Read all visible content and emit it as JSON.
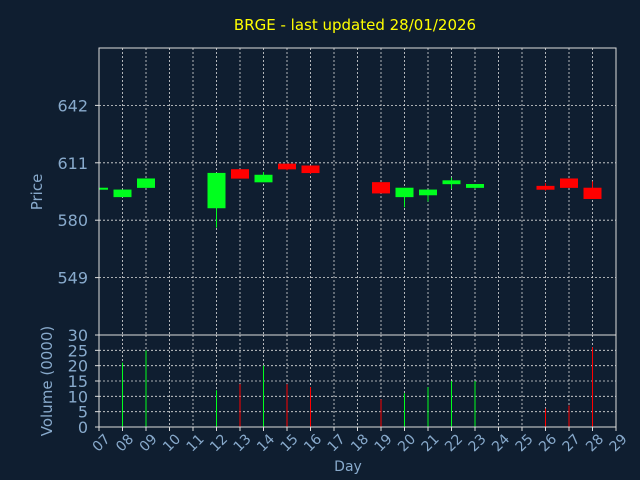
{
  "chart_data": {
    "type": "candlestick",
    "title": "BRGE - last updated 28/01/2026",
    "xlabel": "Day",
    "price_panel": {
      "ylabel": "Price",
      "yticks": [
        549,
        580,
        611,
        642
      ],
      "ylim": [
        518,
        673
      ],
      "grid": true
    },
    "volume_panel": {
      "ylabel": "Volume (0000)",
      "yticks": [
        0,
        5,
        10,
        15,
        20,
        25,
        30
      ],
      "ylim": [
        0,
        30
      ],
      "grid": true
    },
    "x_ticks": [
      "07",
      "08",
      "09",
      "10",
      "11",
      "12",
      "13",
      "14",
      "15",
      "16",
      "17",
      "18",
      "19",
      "20",
      "21",
      "22",
      "23",
      "24",
      "25",
      "26",
      "27",
      "28",
      "29"
    ],
    "candles": [
      {
        "day": "07",
        "open": 597,
        "close": 597,
        "high": 597,
        "low": 597,
        "volume": 0
      },
      {
        "day": "08",
        "open": 593,
        "close": 596,
        "high": 596,
        "low": 593,
        "volume": 21
      },
      {
        "day": "09",
        "open": 598,
        "close": 602,
        "high": 602,
        "low": 598,
        "volume": 25
      },
      {
        "day": "12",
        "open": 587,
        "close": 605,
        "high": 605,
        "low": 576,
        "volume": 12
      },
      {
        "day": "13",
        "open": 607,
        "close": 603,
        "high": 607,
        "low": 603,
        "volume": 14
      },
      {
        "day": "14",
        "open": 601,
        "close": 604,
        "high": 606,
        "low": 601,
        "volume": 20
      },
      {
        "day": "15",
        "open": 610,
        "close": 608,
        "high": 610,
        "low": 607,
        "volume": 14
      },
      {
        "day": "16",
        "open": 609,
        "close": 606,
        "high": 609,
        "low": 605,
        "volume": 13
      },
      {
        "day": "19",
        "open": 600,
        "close": 595,
        "high": 600,
        "low": 595,
        "volume": 9
      },
      {
        "day": "20",
        "open": 593,
        "close": 597,
        "high": 597,
        "low": 587,
        "volume": 11
      },
      {
        "day": "21",
        "open": 594,
        "close": 596,
        "high": 596,
        "low": 590,
        "volume": 13
      },
      {
        "day": "22",
        "open": 600,
        "close": 601,
        "high": 603,
        "low": 597,
        "volume": 15
      },
      {
        "day": "23",
        "open": 598,
        "close": 599,
        "high": 599,
        "low": 597,
        "volume": 15
      },
      {
        "day": "26",
        "open": 598,
        "close": 597,
        "high": 600,
        "low": 596,
        "volume": 6
      },
      {
        "day": "27",
        "open": 602,
        "close": 598,
        "high": 602,
        "low": 598,
        "volume": 7
      },
      {
        "day": "28",
        "open": 597,
        "close": 592,
        "high": 601,
        "low": 592,
        "volume": 26
      }
    ],
    "colors": {
      "background": "#0f1e30",
      "up": "#00ff1e",
      "down": "#ff0000",
      "title": "#ffff00",
      "axis_text": "#88aacc",
      "grid": "#dddddd"
    }
  }
}
